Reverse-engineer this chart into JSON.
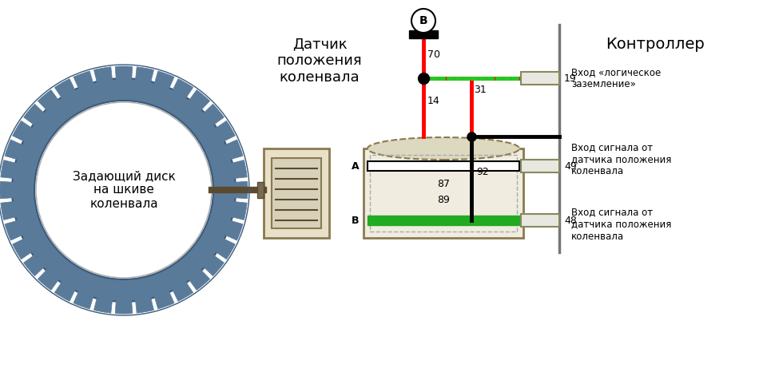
{
  "bg_color": "#ffffff",
  "gear_color": "#5a7a9a",
  "gear_tooth_count": 36,
  "gear_label": "Задающий диск\nна шкиве\nколенвала",
  "sensor_label": "Датчик\nположения\nколенвала",
  "controller_label": "Контроллер",
  "connector_label_right1": "Вход сигнала от\nдатчика положения\nколенвала",
  "connector_label_right2": "Вход сигнала от\nдатчика положения\nколенвала",
  "connector_label_right3": "Вход «логическое\nзаземление»",
  "pin_A_label": "A",
  "pin_B_label": "B",
  "ground_label": "B"
}
